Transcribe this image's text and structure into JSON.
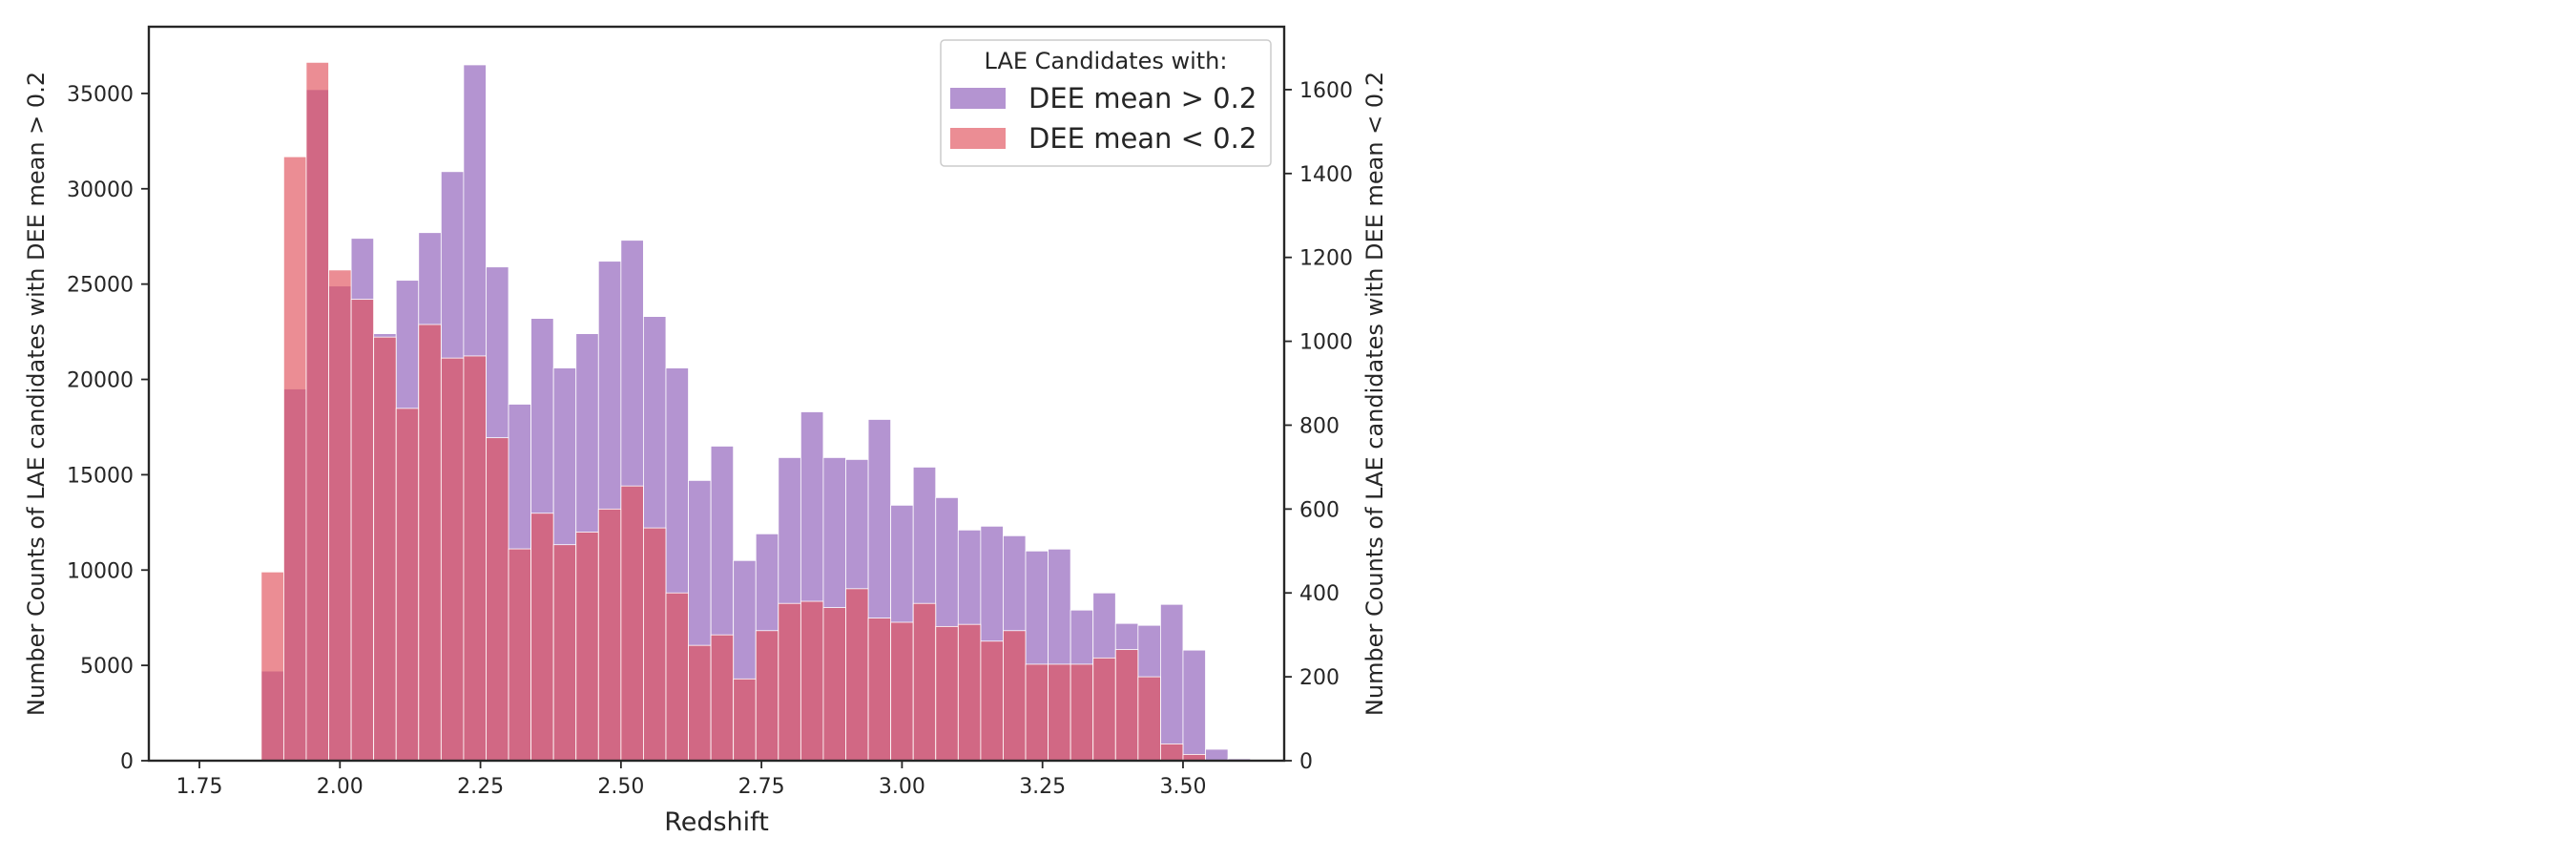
{
  "chart_data": {
    "type": "bar",
    "subtype": "overlaid-histogram-twin-y",
    "xlabel": "Redshift",
    "ylabel_left": "Number Counts of LAE candidates with DEE mean > 0.2",
    "ylabel_right": "Number Counts of LAE candidates with DEE mean < 0.2",
    "xlim": [
      1.66,
      3.68
    ],
    "ylim_left": [
      0,
      38500
    ],
    "ylim_right": [
      0,
      1750
    ],
    "x_ticks": [
      "1.75",
      "2.00",
      "2.25",
      "2.50",
      "2.75",
      "3.00",
      "3.25",
      "3.50"
    ],
    "y_ticks_left": [
      "0",
      "5000",
      "10000",
      "15000",
      "20000",
      "25000",
      "30000",
      "35000"
    ],
    "y_ticks_right": [
      "0",
      "200",
      "400",
      "600",
      "800",
      "1000",
      "1200",
      "1400",
      "1600"
    ],
    "grid": false,
    "legend": {
      "title": "LAE Candidates with:",
      "placement": "top-right",
      "entries": [
        "DEE mean > 0.2",
        "DEE mean < 0.2"
      ]
    },
    "colors": {
      "high": "#9467bd",
      "low": "#e0505a",
      "high_alpha": 0.7,
      "low_alpha": 0.65,
      "bar_edge": "#ffffff"
    },
    "bin_edges": [
      1.7,
      1.74,
      1.78,
      1.82,
      1.86,
      1.9,
      1.94,
      1.98,
      2.02,
      2.06,
      2.1,
      2.14,
      2.18,
      2.22,
      2.26,
      2.3,
      2.34,
      2.38,
      2.42,
      2.46,
      2.5,
      2.54,
      2.58,
      2.62,
      2.66,
      2.7,
      2.74,
      2.78,
      2.82,
      2.86,
      2.9,
      2.94,
      2.98,
      3.02,
      3.06,
      3.1,
      3.14,
      3.18,
      3.22,
      3.26,
      3.3,
      3.34,
      3.38,
      3.42,
      3.46,
      3.5,
      3.54,
      3.58,
      3.62
    ],
    "series": [
      {
        "name": "DEE mean > 0.2",
        "axis": "left",
        "values": [
          0,
          0,
          0,
          0,
          4700,
          19500,
          35200,
          24900,
          27400,
          22400,
          25200,
          27700,
          30900,
          36500,
          25900,
          18700,
          23200,
          20600,
          22400,
          26200,
          27300,
          23300,
          20600,
          14700,
          16500,
          10500,
          11900,
          15900,
          18300,
          15900,
          15800,
          17900,
          13400,
          15400,
          13800,
          12100,
          12300,
          11800,
          11000,
          11100,
          7900,
          8800,
          7200,
          7100,
          8200,
          5800,
          600,
          100
        ]
      },
      {
        "name": "DEE mean < 0.2",
        "axis": "right",
        "values": [
          1,
          0,
          0,
          0,
          450,
          1440,
          1665,
          1170,
          1100,
          1010,
          840,
          1040,
          960,
          965,
          770,
          505,
          590,
          515,
          545,
          600,
          655,
          555,
          400,
          275,
          300,
          195,
          310,
          375,
          380,
          365,
          410,
          340,
          330,
          375,
          320,
          325,
          285,
          310,
          230,
          230,
          230,
          245,
          265,
          200,
          40,
          15,
          0,
          0
        ]
      }
    ]
  }
}
